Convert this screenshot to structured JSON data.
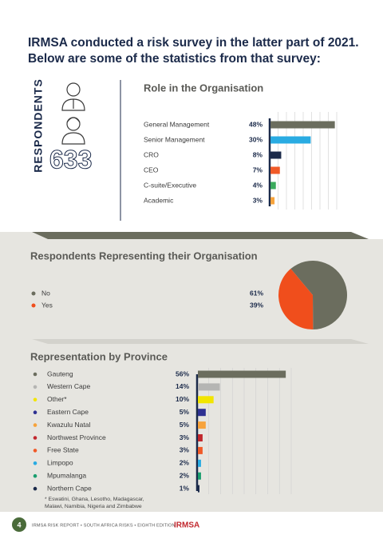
{
  "header": {
    "title_lines": [
      "IRMSA conducted a risk survey in the latter part of 2021.",
      "Below are some of the statistics from that survey:"
    ]
  },
  "respondents": {
    "label": "RESPONDENTS",
    "count": "633"
  },
  "chart_data": [
    {
      "type": "bar",
      "title": "Role in the Organisation",
      "categories": [
        "General Management",
        "Senior Management",
        "CRO",
        "CEO",
        "C-suite/Executive",
        "Academic"
      ],
      "values": [
        48,
        30,
        8,
        7,
        4,
        3
      ],
      "value_labels": [
        "48%",
        "30%",
        "8%",
        "7%",
        "4%",
        "3%"
      ],
      "colors": [
        "#6b6d5e",
        "#29abe2",
        "#1b2a4a",
        "#f05a28",
        "#3aaa5c",
        "#f7a33c"
      ],
      "xlim": [
        0,
        50
      ]
    },
    {
      "type": "pie",
      "title": "Respondents Representing their Organisation",
      "categories": [
        "No",
        "Yes"
      ],
      "values": [
        61,
        39
      ],
      "value_labels": [
        "61%",
        "39%"
      ],
      "colors": [
        "#6b6d5e",
        "#f04e1c"
      ]
    },
    {
      "type": "bar",
      "title": "Representation by Province",
      "categories": [
        "Gauteng",
        "Western Cape",
        "Other*",
        "Eastern Cape",
        "Kwazulu Natal",
        "Northwest Province",
        "Free State",
        "Limpopo",
        "Mpumalanga",
        "Northern Cape"
      ],
      "values": [
        56,
        14,
        10,
        5,
        5,
        3,
        3,
        2,
        2,
        1
      ],
      "value_labels": [
        "56%",
        "14%",
        "10%",
        "5%",
        "5%",
        "3%",
        "3%",
        "2%",
        "2%",
        "1%"
      ],
      "colors": [
        "#6b6d5e",
        "#b5b5b3",
        "#f2e500",
        "#2e3192",
        "#f7a33c",
        "#c1272d",
        "#f05a28",
        "#29abe2",
        "#1a9e6e",
        "#1b2a4a"
      ],
      "legend_markers": true,
      "xlim": [
        0,
        60
      ],
      "footnote_lines": [
        "* Eswatini, Ghana, Lesotho, Madagascar,",
        "Malawi, Namibia, Nigeria and Zimbabwe"
      ]
    }
  ],
  "footer": {
    "page": "4",
    "text": "IRMSA RISK REPORT • SOUTH AFRICA RISKS • EIGHTH EDITION",
    "logo": "IRMSA"
  }
}
